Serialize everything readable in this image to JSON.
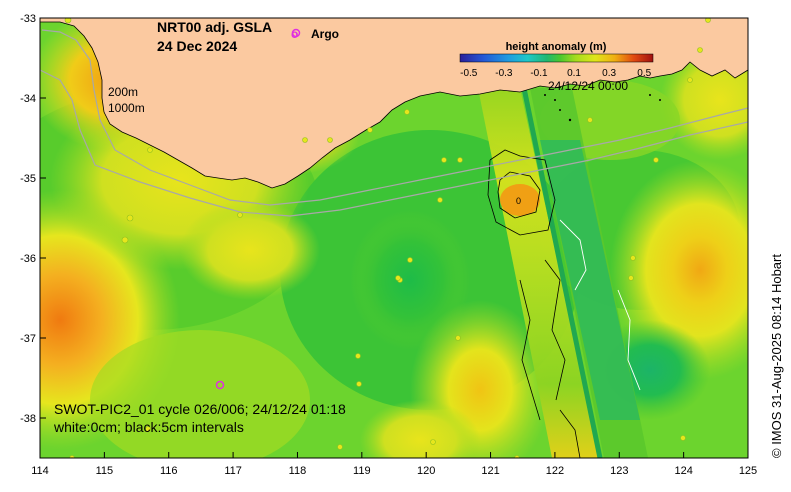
{
  "title": {
    "line1": "NRT00 adj. GSLA",
    "line2": "24 Dec 2024"
  },
  "argo_legend": {
    "symbol": "o",
    "label": "Argo",
    "color": "#e030e0"
  },
  "isobaths": {
    "label_200": "200m",
    "label_1000": "1000m"
  },
  "colorbar": {
    "title": "height anomaly (m)",
    "ticks": [
      "-0.5",
      "-0.3",
      "-0.1",
      "0.1",
      "0.3",
      "0.5"
    ],
    "timestamp": "24/12/24 00:00",
    "colors": [
      "#2a1f9a",
      "#2457d6",
      "#1f9be0",
      "#1fc8c8",
      "#20b870",
      "#2ec43a",
      "#66d22a",
      "#a6dc1e",
      "#e0e61a",
      "#f0c012",
      "#ee8a0e",
      "#e24a10",
      "#b01010"
    ]
  },
  "caption": {
    "line1": "SWOT-PIC2_01 cycle 026/006; 24/12/24 01:18",
    "line2": "white:0cm; black:5cm intervals"
  },
  "contour_label": "0",
  "credit": "© IMOS 31-Aug-2025 08:14 Hobart",
  "axes": {
    "x_ticks": [
      "114",
      "115",
      "116",
      "117",
      "118",
      "119",
      "120",
      "121",
      "122",
      "123",
      "124",
      "125"
    ],
    "y_ticks": [
      "-33",
      "-34",
      "-35",
      "-36",
      "-37",
      "-38"
    ],
    "lon_range": [
      114,
      125
    ],
    "lat_range": [
      -38.5,
      -33
    ]
  },
  "colors": {
    "land": "#fbc9a0",
    "ocean": "#6cd42e",
    "isobath": "#a8a8a8",
    "argo": "#e030e0"
  }
}
